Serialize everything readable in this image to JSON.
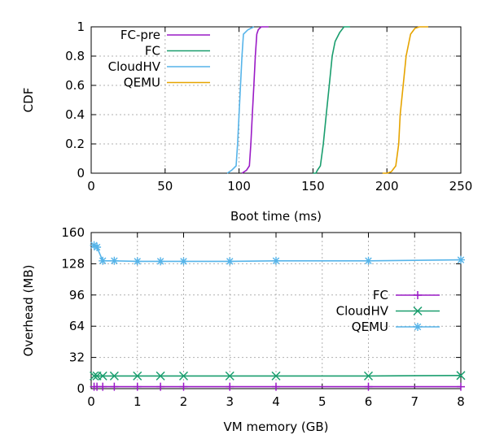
{
  "chart_data": [
    {
      "type": "line",
      "xlabel": "Boot time (ms)",
      "ylabel": "CDF",
      "xlim": [
        0,
        250
      ],
      "ylim": [
        0,
        1
      ],
      "xticks": [
        "0",
        "50",
        "100",
        "150",
        "200",
        "250"
      ],
      "yticks": [
        "0",
        "0.2",
        "0.4",
        "0.6",
        "0.8",
        "1"
      ],
      "grid": true,
      "legend_position": "top-left",
      "series": [
        {
          "name": "FC-pre",
          "color": "#9a1ac6",
          "points": [
            [
              102,
              0
            ],
            [
              105,
              0.02
            ],
            [
              107,
              0.05
            ],
            [
              108,
              0.2
            ],
            [
              109,
              0.4
            ],
            [
              110,
              0.6
            ],
            [
              111,
              0.8
            ],
            [
              112,
              0.95
            ],
            [
              113,
              0.98
            ],
            [
              115,
              1.0
            ],
            [
              120,
              1.0
            ]
          ]
        },
        {
          "name": "FC",
          "color": "#1a9e6e",
          "points": [
            [
              150,
              0
            ],
            [
              152,
              0
            ],
            [
              153,
              0.02
            ],
            [
              155,
              0.05
            ],
            [
              157,
              0.2
            ],
            [
              159,
              0.4
            ],
            [
              161,
              0.6
            ],
            [
              163,
              0.8
            ],
            [
              165,
              0.9
            ],
            [
              168,
              0.96
            ],
            [
              171,
              1.0
            ],
            [
              175,
              1.0
            ]
          ]
        },
        {
          "name": "CloudHV",
          "color": "#56b4e9",
          "points": [
            [
              92,
              0
            ],
            [
              95,
              0.02
            ],
            [
              98,
              0.05
            ],
            [
              99,
              0.2
            ],
            [
              100,
              0.4
            ],
            [
              101,
              0.6
            ],
            [
              102,
              0.8
            ],
            [
              103,
              0.95
            ],
            [
              106,
              0.98
            ],
            [
              110,
              1.0
            ]
          ]
        },
        {
          "name": "QEMU",
          "color": "#e6a400",
          "points": [
            [
              197,
              0
            ],
            [
              200,
              0
            ],
            [
              203,
              0.01
            ],
            [
              206,
              0.05
            ],
            [
              208,
              0.2
            ],
            [
              209,
              0.4
            ],
            [
              211,
              0.6
            ],
            [
              213,
              0.8
            ],
            [
              216,
              0.95
            ],
            [
              219,
              0.99
            ],
            [
              222,
              1.0
            ],
            [
              228,
              1.0
            ]
          ]
        }
      ]
    },
    {
      "type": "line",
      "xlabel": "VM memory (GB)",
      "ylabel": "Overhead (MB)",
      "xlim": [
        0,
        8
      ],
      "ylim": [
        0,
        160
      ],
      "xticks": [
        "0",
        "1",
        "2",
        "3",
        "4",
        "5",
        "6",
        "7",
        "8"
      ],
      "yticks": [
        "0",
        "32",
        "64",
        "96",
        "128",
        "160"
      ],
      "grid": true,
      "legend_position": "center-right",
      "series": [
        {
          "name": "FC",
          "color": "#9a1ac6",
          "marker": "plus",
          "points": [
            [
              0.0625,
              2
            ],
            [
              0.125,
              2
            ],
            [
              0.25,
              2
            ],
            [
              0.5,
              2
            ],
            [
              1,
              2
            ],
            [
              1.5,
              2
            ],
            [
              2,
              2
            ],
            [
              3,
              2
            ],
            [
              4,
              2
            ],
            [
              6,
              2
            ],
            [
              8,
              2
            ]
          ]
        },
        {
          "name": "CloudHV",
          "color": "#1a9e6e",
          "marker": "x",
          "points": [
            [
              0.0625,
              13
            ],
            [
              0.125,
              13
            ],
            [
              0.25,
              13
            ],
            [
              0.5,
              13
            ],
            [
              1,
              13
            ],
            [
              1.5,
              13
            ],
            [
              2,
              13
            ],
            [
              3,
              13
            ],
            [
              4,
              13
            ],
            [
              6,
              13
            ],
            [
              8,
              13.5
            ]
          ]
        },
        {
          "name": "QEMU",
          "color": "#56b4e9",
          "marker": "star",
          "points": [
            [
              0.0625,
              147
            ],
            [
              0.125,
              145
            ],
            [
              0.25,
              131
            ],
            [
              0.5,
              131
            ],
            [
              1,
              130.5
            ],
            [
              1.5,
              130.5
            ],
            [
              2,
              130.5
            ],
            [
              3,
              130.5
            ],
            [
              4,
              131
            ],
            [
              6,
              131
            ],
            [
              8,
              132
            ]
          ]
        }
      ]
    }
  ]
}
